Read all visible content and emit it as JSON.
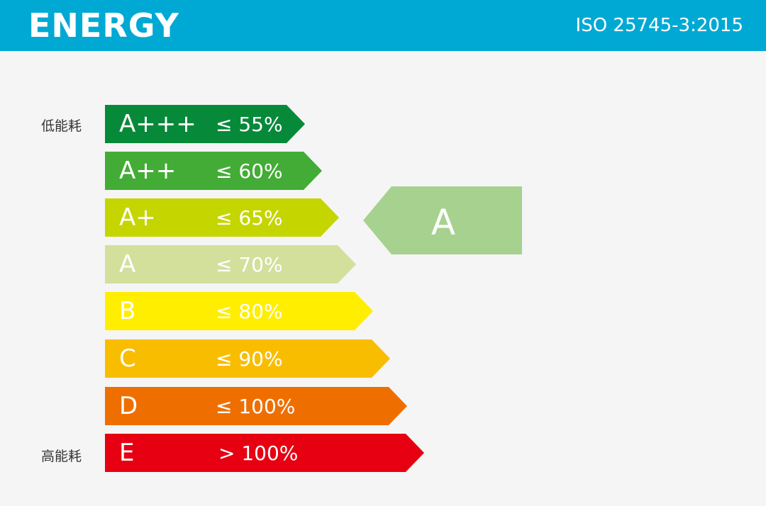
{
  "header": {
    "title": "ENERGY",
    "standard": "ISO 25745-3:2015",
    "color": "#00a9d4"
  },
  "labels": {
    "low": "低能耗",
    "high": "高能耗"
  },
  "classes": [
    {
      "label": "A+++",
      "threshold": "≤ 55%",
      "color": "#07893a"
    },
    {
      "label": "A++",
      "threshold": "≤ 60%",
      "color": "#43ac36"
    },
    {
      "label": "A+",
      "threshold": "≤ 65%",
      "color": "#c5d500"
    },
    {
      "label": "A",
      "threshold": "≤ 70%",
      "color": "#d2e09c"
    },
    {
      "label": "B",
      "threshold": "≤ 80%",
      "color": "#ffee00"
    },
    {
      "label": "C",
      "threshold": "≤ 90%",
      "color": "#f9bd00"
    },
    {
      "label": "D",
      "threshold": "≤ 100%",
      "color": "#ee6f00"
    },
    {
      "label": "E",
      "threshold": "> 100%",
      "color": "#e60012"
    }
  ],
  "rating": {
    "label": "A",
    "color": "#a7d18f"
  }
}
